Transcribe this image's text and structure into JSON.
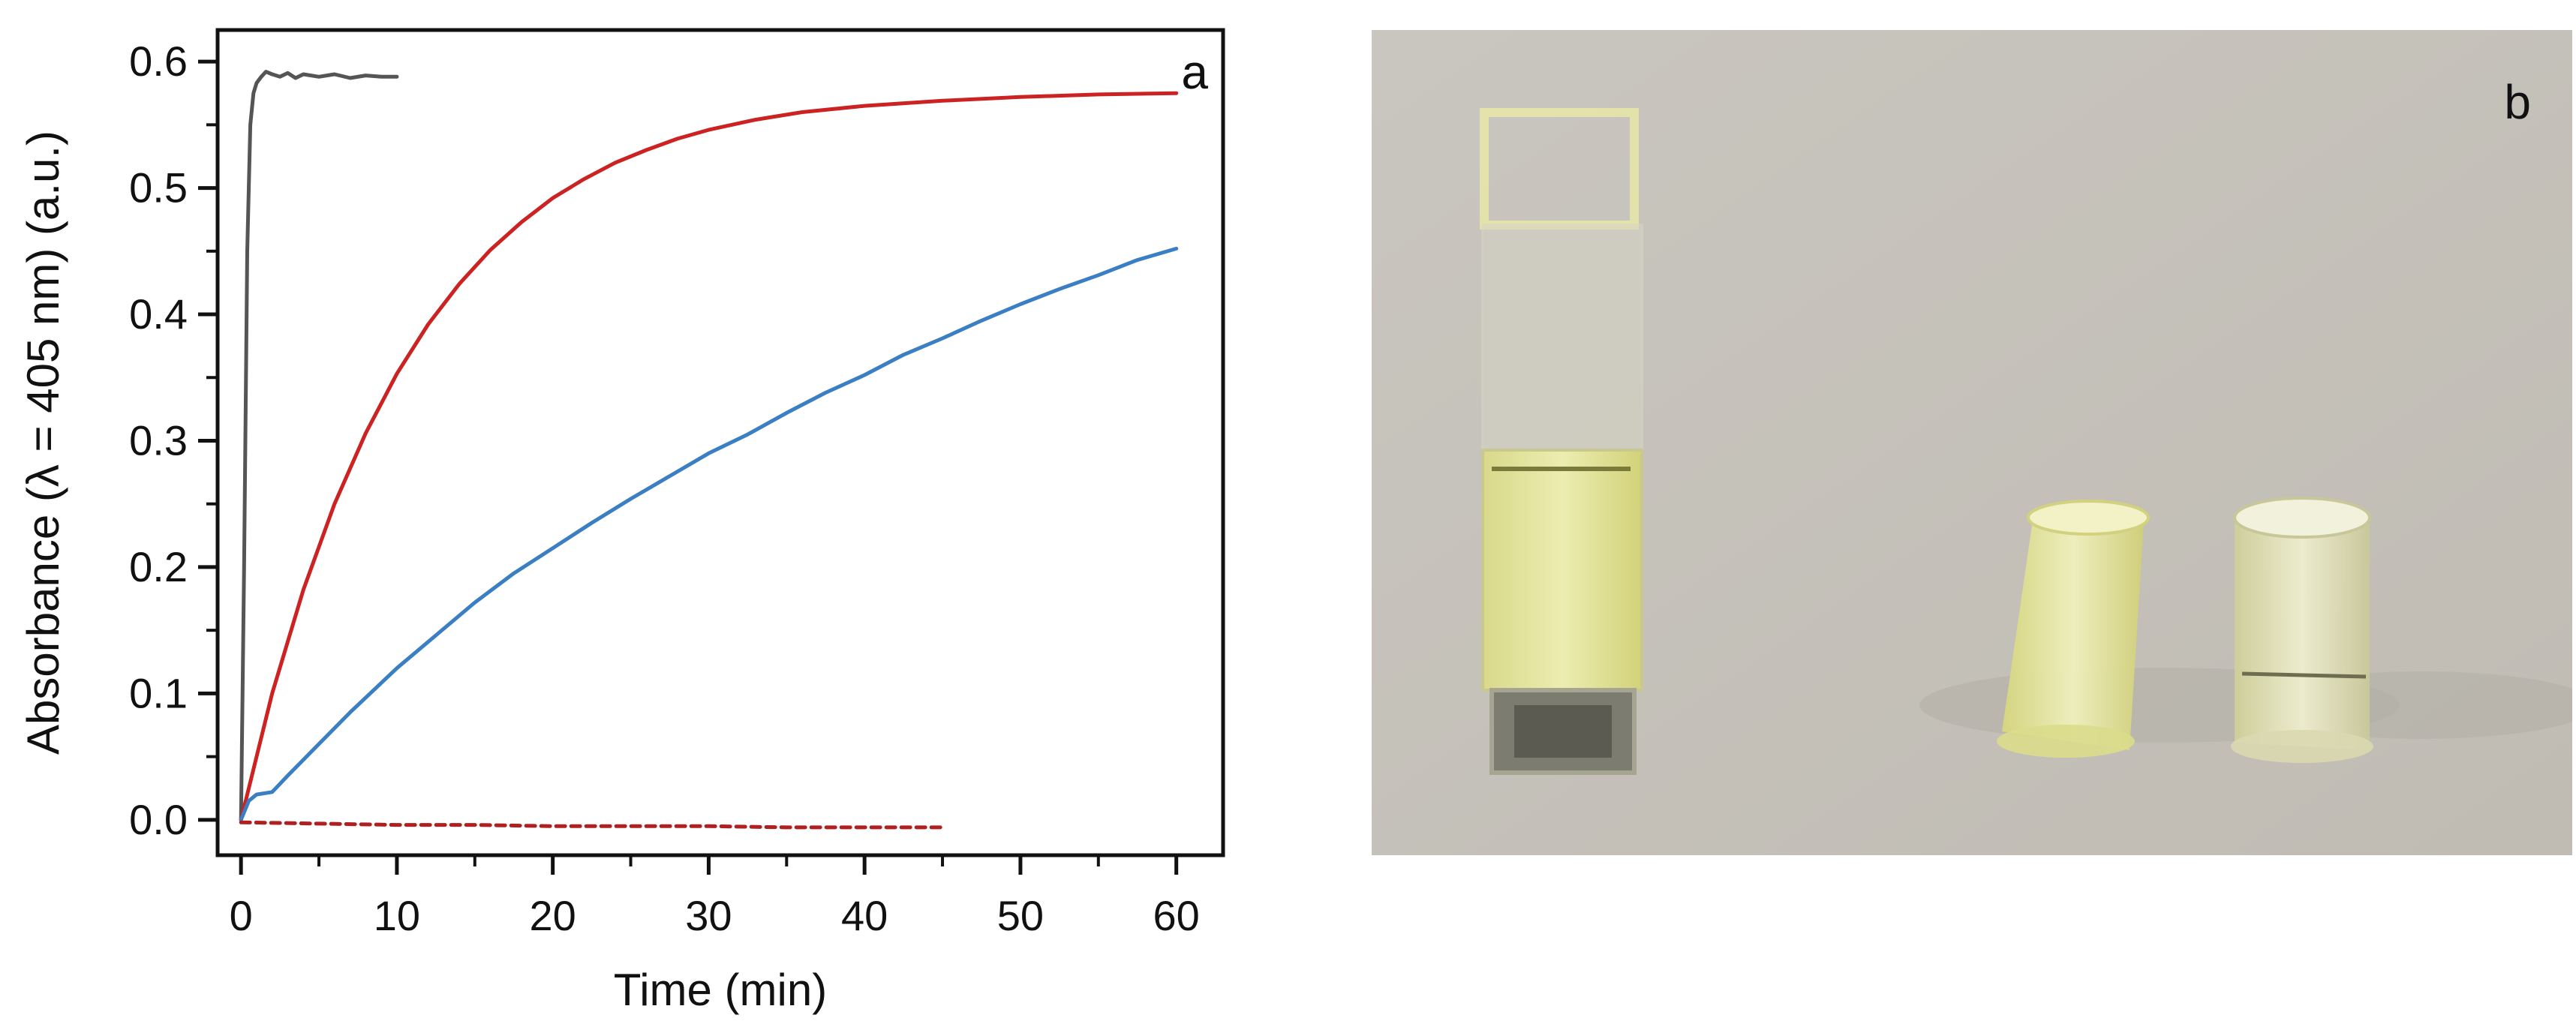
{
  "chart_data": {
    "type": "line",
    "panel_label": "a",
    "xlabel": "Time (min)",
    "ylabel": "Absorbance (λ = 405 nm) (a.u.)",
    "xlim": [
      -1.5,
      63
    ],
    "ylim": [
      -0.028,
      0.625
    ],
    "x_ticks": [
      0,
      10,
      20,
      30,
      40,
      50,
      60
    ],
    "x_tick_labels": [
      "0",
      "10",
      "20",
      "30",
      "40",
      "50",
      "60"
    ],
    "y_ticks": [
      0.0,
      0.1,
      0.2,
      0.3,
      0.4,
      0.5,
      0.6
    ],
    "y_tick_labels": [
      "0.0",
      "0.1",
      "0.2",
      "0.3",
      "0.4",
      "0.5",
      "0.6"
    ],
    "grid": false,
    "legend": "none",
    "series": [
      {
        "color": "#555555",
        "style": "solid",
        "x": [
          0,
          0.2,
          0.4,
          0.6,
          0.8,
          1.0,
          1.3,
          1.6,
          2.0,
          2.5,
          3.0,
          3.5,
          4.0,
          5.0,
          6.0,
          7.0,
          8.0,
          9.0,
          10.0
        ],
        "y": [
          0.0,
          0.2,
          0.45,
          0.55,
          0.575,
          0.583,
          0.588,
          0.592,
          0.59,
          0.588,
          0.591,
          0.587,
          0.59,
          0.588,
          0.59,
          0.587,
          0.589,
          0.588,
          0.588
        ]
      },
      {
        "color": "#cc2222",
        "style": "solid",
        "x": [
          0,
          2,
          4,
          6,
          8,
          10,
          12,
          14,
          16,
          18,
          20,
          22,
          24,
          26,
          28,
          30,
          33,
          36,
          40,
          45,
          50,
          55,
          60
        ],
        "y": [
          0.0,
          0.1,
          0.182,
          0.25,
          0.306,
          0.353,
          0.392,
          0.424,
          0.451,
          0.473,
          0.492,
          0.507,
          0.52,
          0.53,
          0.539,
          0.546,
          0.554,
          0.56,
          0.565,
          0.569,
          0.572,
          0.574,
          0.575
        ]
      },
      {
        "color": "#3a7fc4",
        "style": "solid",
        "x": [
          0,
          0.5,
          1,
          2,
          3,
          5,
          7,
          10,
          12.5,
          15,
          17.5,
          20,
          22.5,
          25,
          27.5,
          30,
          32.5,
          35,
          37.5,
          40,
          42.5,
          45,
          47.5,
          50,
          52.5,
          55,
          57.5,
          60
        ],
        "y": [
          0.0,
          0.015,
          0.02,
          0.022,
          0.035,
          0.06,
          0.085,
          0.12,
          0.146,
          0.172,
          0.195,
          0.215,
          0.235,
          0.254,
          0.272,
          0.29,
          0.305,
          0.322,
          0.338,
          0.352,
          0.368,
          0.381,
          0.395,
          0.408,
          0.42,
          0.431,
          0.443,
          0.452
        ]
      },
      {
        "color": "#b02020",
        "style": "dashed",
        "x": [
          0,
          5,
          10,
          15,
          20,
          25,
          30,
          35,
          40,
          45
        ],
        "y": [
          -0.002,
          -0.003,
          -0.004,
          -0.004,
          -0.005,
          -0.005,
          -0.005,
          -0.006,
          -0.006,
          -0.006
        ]
      }
    ]
  },
  "photo_panel": {
    "panel_label": "b",
    "colors": {
      "background": "#c6c3bc",
      "liquid": "#e3e49a",
      "liquid_dark": "#d2d27a"
    }
  }
}
